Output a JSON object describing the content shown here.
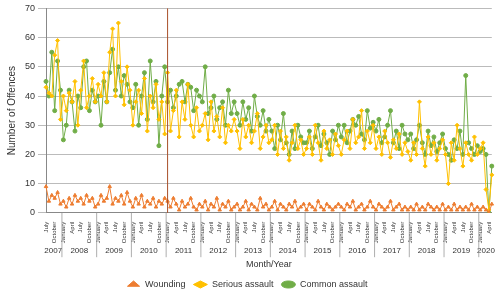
{
  "chart_data": {
    "type": "line",
    "x_label": "Month/Year",
    "y_label": "Number of Offences",
    "categories": [
      "July",
      null,
      null,
      "October",
      null,
      null,
      "January",
      null,
      null,
      "April",
      null,
      null,
      "July",
      null,
      null,
      "October",
      null,
      null,
      "January",
      null,
      null,
      "April",
      null,
      null,
      "July",
      null,
      null,
      "October",
      null,
      null,
      "January",
      null,
      null,
      "April",
      null,
      null,
      "July",
      null,
      null,
      "October",
      null,
      null,
      "January",
      null,
      null,
      "April",
      null,
      null,
      "July",
      null,
      null,
      "October",
      null,
      null,
      "January",
      null,
      null,
      "April",
      null,
      null,
      "July",
      null,
      null,
      "October",
      null,
      null,
      "January",
      null,
      null,
      "April",
      null,
      null,
      "July",
      null,
      null,
      "October",
      null,
      null,
      "January",
      null,
      null,
      "April",
      null,
      null,
      "July",
      null,
      null,
      "October",
      null,
      null,
      "January",
      null,
      null,
      "April",
      null,
      null,
      "July",
      null,
      null,
      "October",
      null,
      null,
      "January",
      null,
      null,
      "April",
      null,
      null,
      "July",
      null,
      null,
      "October",
      null,
      null,
      "January",
      null,
      null,
      "April",
      null,
      null,
      "July",
      null,
      null,
      "October",
      null,
      null,
      "January",
      null,
      null,
      "April",
      null,
      null,
      "July",
      null,
      null,
      "October",
      null,
      null,
      "January",
      null,
      null,
      "April",
      null,
      null,
      "July",
      null,
      null,
      "October",
      null,
      null,
      "January",
      null,
      null,
      "April",
      null
    ],
    "x_groups": [
      {
        "label": "2007",
        "count": 6
      },
      {
        "label": "2008",
        "count": 12
      },
      {
        "label": "2009",
        "count": 12
      },
      {
        "label": "2010",
        "count": 12
      },
      {
        "label": "2011",
        "count": 12
      },
      {
        "label": "2012",
        "count": 12
      },
      {
        "label": "2013",
        "count": 12
      },
      {
        "label": "2014",
        "count": 12
      },
      {
        "label": "2015",
        "count": 12
      },
      {
        "label": "2016",
        "count": 12
      },
      {
        "label": "2017",
        "count": 12
      },
      {
        "label": "2018",
        "count": 12
      },
      {
        "label": "2019",
        "count": 12
      },
      {
        "label": "2020",
        "count": 5
      }
    ],
    "vertical_line": {
      "at": 42,
      "color": "#a9502a"
    },
    "series": [
      {
        "name": "Wounding",
        "color": "#ed7d31",
        "marker": "triangle",
        "values": [
          9,
          4,
          6,
          5,
          7,
          3,
          4,
          2,
          5,
          3,
          6,
          4,
          5,
          3,
          6,
          4,
          5,
          2,
          3,
          6,
          4,
          5,
          9,
          3,
          5,
          4,
          6,
          3,
          7,
          4,
          2,
          5,
          3,
          6,
          2,
          4,
          3,
          5,
          2,
          4,
          3,
          5,
          4,
          2,
          5,
          3,
          1,
          4,
          2,
          3,
          5,
          2,
          1,
          3,
          2,
          4,
          1,
          3,
          2,
          5,
          1,
          3,
          2,
          4,
          1,
          2,
          3,
          1,
          2,
          4,
          1,
          3,
          2,
          1,
          5,
          2,
          3,
          1,
          2,
          4,
          1,
          3,
          2,
          1,
          3,
          2,
          4,
          1,
          2,
          3,
          1,
          3,
          2,
          1,
          4,
          2,
          1,
          3,
          2,
          1,
          2,
          3,
          2,
          1,
          3,
          2,
          4,
          1,
          2,
          3,
          1,
          2,
          4,
          2,
          1,
          3,
          2,
          1,
          2,
          4,
          1,
          2,
          3,
          1,
          2,
          1,
          2,
          1,
          3,
          1,
          2,
          1,
          3,
          2,
          1,
          2,
          1,
          3,
          1,
          2,
          1,
          3,
          1,
          2,
          1,
          2,
          1,
          3,
          1,
          2,
          1,
          2,
          1,
          0,
          3
        ]
      },
      {
        "name": "Serious assault",
        "color": "#ffc000",
        "marker": "diamond",
        "values": [
          43,
          41,
          40,
          54,
          59,
          32,
          40,
          35,
          41,
          38,
          45,
          30,
          42,
          52,
          36,
          40,
          46,
          38,
          44,
          40,
          48,
          38,
          55,
          63,
          40,
          65,
          45,
          37,
          50,
          42,
          30,
          38,
          42,
          34,
          46,
          28,
          40,
          36,
          44,
          32,
          38,
          27,
          48,
          28,
          35,
          42,
          26,
          38,
          32,
          44,
          30,
          26,
          36,
          28,
          30,
          34,
          25,
          38,
          28,
          33,
          26,
          36,
          24,
          30,
          28,
          32,
          28,
          22,
          32,
          26,
          30,
          24,
          28,
          34,
          22,
          26,
          30,
          24,
          25,
          30,
          20,
          28,
          22,
          26,
          18,
          24,
          30,
          22,
          25,
          20,
          22,
          26,
          20,
          30,
          24,
          18,
          28,
          22,
          25,
          20,
          27,
          23,
          20,
          25,
          28,
          22,
          32,
          24,
          26,
          35,
          22,
          28,
          24,
          30,
          22,
          26,
          20,
          28,
          24,
          19,
          25,
          22,
          27,
          20,
          24,
          21,
          18,
          24,
          20,
          38,
          22,
          16,
          26,
          20,
          24,
          18,
          22,
          25,
          20,
          10,
          24,
          18,
          30,
          22,
          16,
          24,
          20,
          18,
          26,
          20,
          22,
          24,
          8,
          1,
          13
        ]
      },
      {
        "name": "Common assault",
        "color": "#70ad47",
        "marker": "circle",
        "values": [
          45,
          40,
          55,
          35,
          52,
          42,
          25,
          30,
          42,
          38,
          28,
          40,
          36,
          50,
          52,
          35,
          42,
          38,
          40,
          30,
          45,
          38,
          48,
          56,
          42,
          50,
          40,
          47,
          44,
          38,
          36,
          44,
          30,
          40,
          48,
          32,
          52,
          38,
          45,
          23,
          40,
          50,
          38,
          42,
          36,
          40,
          44,
          45,
          38,
          44,
          43,
          35,
          42,
          40,
          38,
          50,
          34,
          36,
          40,
          32,
          36,
          38,
          30,
          42,
          34,
          38,
          34,
          30,
          38,
          32,
          36,
          28,
          40,
          33,
          30,
          35,
          28,
          32,
          28,
          22,
          30,
          25,
          34,
          24,
          20,
          28,
          22,
          30,
          26,
          24,
          24,
          28,
          22,
          26,
          30,
          23,
          27,
          24,
          20,
          28,
          25,
          30,
          26,
          30,
          24,
          28,
          32,
          30,
          33,
          27,
          25,
          35,
          29,
          31,
          28,
          32,
          24,
          26,
          30,
          35,
          24,
          28,
          22,
          30,
          27,
          25,
          27,
          22,
          25,
          30,
          24,
          20,
          28,
          23,
          26,
          21,
          24,
          27,
          22,
          20,
          18,
          25,
          22,
          28,
          20,
          47,
          24,
          22,
          20,
          23,
          21,
          22,
          20,
          0,
          16
        ]
      }
    ],
    "ylim": [
      0,
      70
    ],
    "yticks": [
      0,
      10,
      20,
      30,
      40,
      50,
      60,
      70
    ],
    "grid": true,
    "legend": "bottom"
  }
}
